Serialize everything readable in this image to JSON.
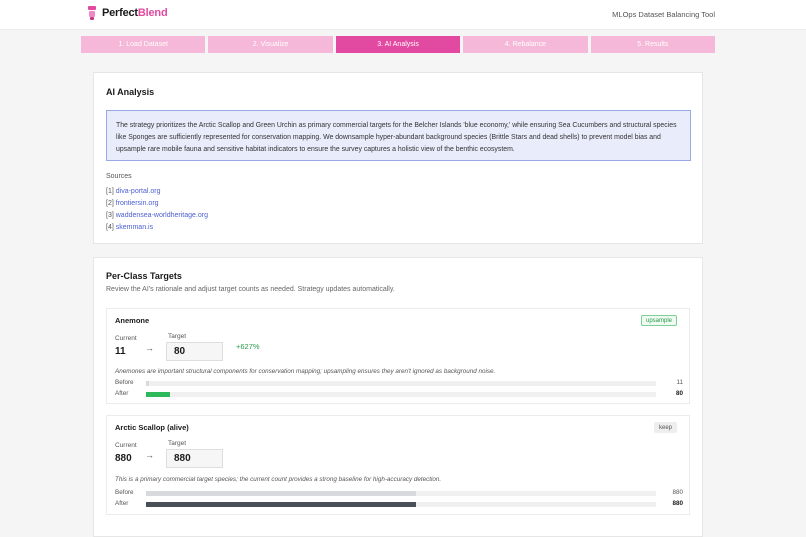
{
  "app": {
    "name_prefix": "Perfect",
    "name_suffix": "Blend",
    "tool_name": "MLOps Dataset Balancing Tool"
  },
  "steps": [
    {
      "label": "1.  Load Dataset",
      "active": false
    },
    {
      "label": "2.  Visualize",
      "active": false
    },
    {
      "label": "3.  AI Analysis",
      "active": true
    },
    {
      "label": "4.  Rebalance",
      "active": false
    },
    {
      "label": "5.  Results",
      "active": false
    }
  ],
  "analysis": {
    "title": "AI Analysis",
    "text": "The strategy prioritizes the Arctic Scallop and Green Urchin as primary commercial targets for the Belcher Islands 'blue economy,' while ensuring Sea Cucumbers and structural species like Sponges are sufficiently represented for conservation mapping. We downsample hyper-abundant background species (Brittle Stars and dead shells) to prevent model bias and upsample rare mobile fauna and sensitive habitat indicators to ensure the survey captures a holistic view of the benthic ecosystem.",
    "sources_label": "Sources",
    "sources": [
      {
        "index": "[1]",
        "text": "diva-portal.org"
      },
      {
        "index": "[2]",
        "text": "frontiersin.org"
      },
      {
        "index": "[3]",
        "text": "waddensea-worldheritage.org"
      },
      {
        "index": "[4]",
        "text": "skemman.is"
      }
    ]
  },
  "targets": {
    "title": "Per-Class Targets",
    "subtitle": "Review the AI's rationale and adjust target counts as needed. Strategy updates automatically.",
    "current_label": "Current",
    "target_label": "Target",
    "before_label": "Before",
    "after_label": "After",
    "arrow": "→",
    "classes": [
      {
        "name": "Anemone",
        "badge": "upsample",
        "current": "11",
        "target": "80",
        "delta": "+627%",
        "note": "Anemones are important structural components for conservation mapping; upsampling ensures they aren't ignored as background noise.",
        "before_value": "11",
        "after_value": "80",
        "before_fraction": 0.0059,
        "after_fraction": 0.0471,
        "after_color": "#2eb85c"
      },
      {
        "name": "Arctic Scallop (alive)",
        "badge": "keep",
        "current": "880",
        "target": "880",
        "delta": "",
        "note": "This is a primary commercial target species; the current count provides a strong baseline for high-accuracy detection.",
        "before_value": "880",
        "after_value": "880",
        "before_fraction": 0.53,
        "after_fraction": 0.53,
        "after_color": "#4a5058"
      }
    ]
  }
}
